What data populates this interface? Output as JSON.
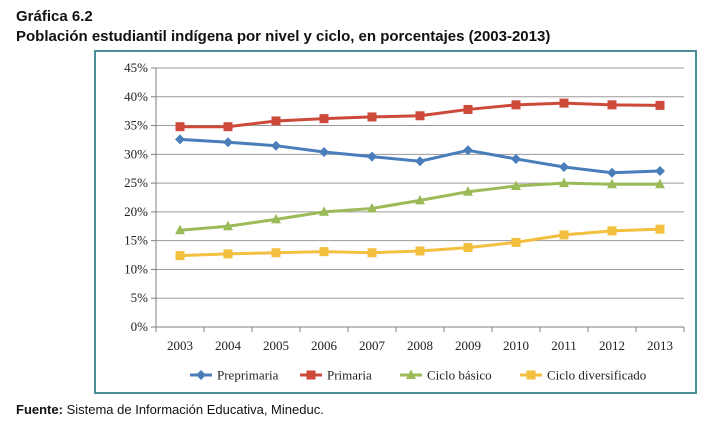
{
  "header": {
    "label": "Gráfica 6.2",
    "title": "Población estudiantil indígena por nivel y ciclo, en porcentajes (2003-2013)"
  },
  "footer": {
    "source_prefix": "Fuente:",
    "source_text": " Sistema de Información Educativa, Mineduc."
  },
  "chart_data": {
    "type": "line",
    "title": "",
    "xlabel": "",
    "ylabel": "",
    "x": [
      "2003",
      "2004",
      "2005",
      "2006",
      "2007",
      "2008",
      "2009",
      "2010",
      "2011",
      "2012",
      "2013"
    ],
    "ylim": [
      0,
      45
    ],
    "yticks": [
      "0%",
      "5%",
      "10%",
      "15%",
      "20%",
      "25%",
      "30%",
      "35%",
      "40%",
      "45%"
    ],
    "grid": true,
    "legend_position": "bottom",
    "series": [
      {
        "name": "Preprimaria",
        "color": "#4a7ebb",
        "marker": "diamond",
        "values": [
          32.6,
          32.1,
          31.5,
          30.4,
          29.6,
          28.8,
          30.7,
          29.2,
          27.8,
          26.8,
          27.1
        ]
      },
      {
        "name": "Primaria",
        "color": "#cd4a3b",
        "marker": "square",
        "values": [
          34.8,
          34.8,
          35.8,
          36.2,
          36.5,
          36.7,
          37.8,
          38.6,
          38.9,
          38.6,
          38.5
        ]
      },
      {
        "name": "Ciclo básico",
        "color": "#9bbb59",
        "marker": "triangle",
        "values": [
          16.8,
          17.5,
          18.7,
          20.0,
          20.6,
          22.0,
          23.5,
          24.5,
          25.0,
          24.8,
          24.8
        ]
      },
      {
        "name": "Ciclo diversificado",
        "color": "#f2bf3f",
        "marker": "square",
        "values": [
          12.4,
          12.7,
          12.9,
          13.1,
          12.9,
          13.2,
          13.8,
          14.7,
          16.0,
          16.7,
          17.0
        ]
      }
    ]
  }
}
